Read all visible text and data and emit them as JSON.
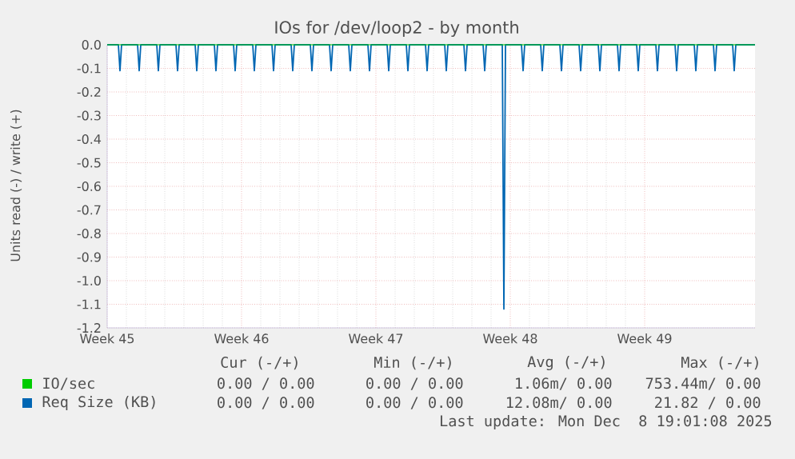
{
  "chart_data": {
    "type": "line",
    "title": "IOs for /dev/loop2 - by month",
    "ylabel": "Units read (-) / write (+)",
    "xlim": [
      "2025-11-03T00:00",
      "2025-12-06T18:00"
    ],
    "ylim": [
      -1.2,
      0
    ],
    "xticks": [
      {
        "value": "2025-11-03",
        "label": "Week 45"
      },
      {
        "value": "2025-11-10",
        "label": "Week 46"
      },
      {
        "value": "2025-11-17",
        "label": "Week 47"
      },
      {
        "value": "2025-11-24",
        "label": "Week 48"
      },
      {
        "value": "2025-12-01",
        "label": "Week 49"
      }
    ],
    "yticks": [
      {
        "value": -1.2,
        "label": "-1.2"
      },
      {
        "value": -1.1,
        "label": "-1.1"
      },
      {
        "value": -1.0,
        "label": "-1.0"
      },
      {
        "value": -0.9,
        "label": "-0.9"
      },
      {
        "value": -0.8,
        "label": "-0.8"
      },
      {
        "value": -0.7,
        "label": "-0.7"
      },
      {
        "value": -0.6,
        "label": "-0.6"
      },
      {
        "value": -0.5,
        "label": "-0.5"
      },
      {
        "value": -0.4,
        "label": "-0.4"
      },
      {
        "value": -0.3,
        "label": "-0.3"
      },
      {
        "value": -0.2,
        "label": "-0.2"
      },
      {
        "value": -0.1,
        "label": "-0.1"
      },
      {
        "value": 0,
        "label": "0.0"
      }
    ],
    "grid": true,
    "legend": "bottom",
    "marker": "none",
    "line_style": "solid",
    "series": [
      {
        "name": "IO/sec",
        "color": "#00cc00",
        "x": [
          "2025-11-03T00:00",
          "2025-12-06T18:00"
        ],
        "values": [
          0,
          0
        ]
      },
      {
        "name": "Req Size (KB)",
        "color": "#0066b3",
        "x": [
          "2025-11-03T00:00",
          "2025-11-03T14:00",
          "2025-11-03T16:00",
          "2025-11-03T18:00",
          "2025-11-04T14:00",
          "2025-11-04T16:00",
          "2025-11-04T18:00",
          "2025-11-05T14:00",
          "2025-11-05T16:00",
          "2025-11-05T18:00",
          "2025-11-06T14:00",
          "2025-11-06T16:00",
          "2025-11-06T18:00",
          "2025-11-07T14:00",
          "2025-11-07T16:00",
          "2025-11-07T18:00",
          "2025-11-08T14:00",
          "2025-11-08T16:00",
          "2025-11-08T18:00",
          "2025-11-09T14:00",
          "2025-11-09T16:00",
          "2025-11-09T18:00",
          "2025-11-10T14:00",
          "2025-11-10T16:00",
          "2025-11-10T18:00",
          "2025-11-11T14:00",
          "2025-11-11T16:00",
          "2025-11-11T18:00",
          "2025-11-12T14:00",
          "2025-11-12T16:00",
          "2025-11-12T18:00",
          "2025-11-13T14:00",
          "2025-11-13T16:00",
          "2025-11-13T18:00",
          "2025-11-14T14:00",
          "2025-11-14T16:00",
          "2025-11-14T18:00",
          "2025-11-15T14:00",
          "2025-11-15T16:00",
          "2025-11-15T18:00",
          "2025-11-16T14:00",
          "2025-11-16T16:00",
          "2025-11-16T18:00",
          "2025-11-17T14:00",
          "2025-11-17T16:00",
          "2025-11-17T18:00",
          "2025-11-18T14:00",
          "2025-11-18T16:00",
          "2025-11-18T18:00",
          "2025-11-19T14:00",
          "2025-11-19T16:00",
          "2025-11-19T18:00",
          "2025-11-20T14:00",
          "2025-11-20T16:00",
          "2025-11-20T18:00",
          "2025-11-21T14:00",
          "2025-11-21T16:00",
          "2025-11-21T18:00",
          "2025-11-22T14:00",
          "2025-11-22T16:00",
          "2025-11-22T18:00",
          "2025-11-23T14:00",
          "2025-11-23T16:00",
          "2025-11-23T18:00",
          "2025-11-24T14:00",
          "2025-11-24T16:00",
          "2025-11-24T18:00",
          "2025-11-25T14:00",
          "2025-11-25T16:00",
          "2025-11-25T18:00",
          "2025-11-26T14:00",
          "2025-11-26T16:00",
          "2025-11-26T18:00",
          "2025-11-27T14:00",
          "2025-11-27T16:00",
          "2025-11-27T18:00",
          "2025-11-28T14:00",
          "2025-11-28T16:00",
          "2025-11-28T18:00",
          "2025-11-29T14:00",
          "2025-11-29T16:00",
          "2025-11-29T18:00",
          "2025-11-30T14:00",
          "2025-11-30T16:00",
          "2025-11-30T18:00",
          "2025-12-01T14:00",
          "2025-12-01T16:00",
          "2025-12-01T18:00",
          "2025-12-02T14:00",
          "2025-12-02T16:00",
          "2025-12-02T18:00",
          "2025-12-03T14:00",
          "2025-12-03T16:00",
          "2025-12-03T18:00",
          "2025-12-04T14:00",
          "2025-12-04T16:00",
          "2025-12-04T18:00",
          "2025-12-05T14:00",
          "2025-12-05T16:00",
          "2025-12-05T18:00",
          "2025-12-06T18:00"
        ],
        "values": [
          0,
          0,
          -0.11,
          0,
          0,
          -0.11,
          0,
          0,
          -0.11,
          0,
          0,
          -0.11,
          0,
          0,
          -0.11,
          0,
          0,
          -0.11,
          0,
          0,
          -0.11,
          0,
          0,
          -0.11,
          0,
          0,
          -0.11,
          0,
          0,
          -0.11,
          0,
          0,
          -0.11,
          0,
          0,
          -0.11,
          0,
          0,
          -0.11,
          0,
          0,
          -0.11,
          0,
          0,
          -0.11,
          0,
          0,
          -0.11,
          0,
          0,
          -0.11,
          0,
          0,
          -0.11,
          0,
          0,
          -0.11,
          0,
          0,
          -0.11,
          0,
          0,
          -1.12,
          0,
          0,
          -0.11,
          0,
          0,
          -0.11,
          0,
          0,
          -0.11,
          0,
          0,
          -0.11,
          0,
          0,
          -0.11,
          0,
          0,
          -0.11,
          0,
          0,
          -0.11,
          0,
          0,
          -0.11,
          0,
          0,
          -0.11,
          0,
          0,
          -0.11,
          0,
          0,
          -0.11,
          0,
          0,
          -0.11,
          0,
          0
        ]
      }
    ],
    "annotations": [
      "Cur (-/+)",
      "Min (-/+)",
      "Avg (-/+)",
      "Max (-/+)",
      "0.00 / 0.00",
      "0.00 / 0.00",
      "1.06m/ 0.00",
      "753.44m/ 0.00",
      "0.00 / 0.00",
      "0.00 / 0.00",
      "12.08m/ 0.00",
      "21.82 / 0.00",
      "Last update: Mon Dec  8 19:01:08 2025"
    ]
  }
}
